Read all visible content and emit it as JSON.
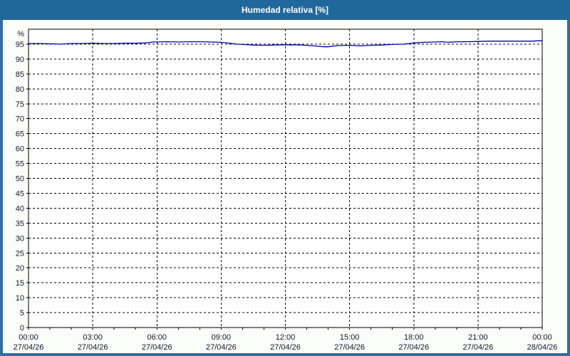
{
  "window": {
    "title": "Humedad relativa [%]"
  },
  "colors": {
    "titlebar_bg": "#20689c",
    "titlebar_text": "#ffffff",
    "window_border": "#2e6da6",
    "content_bg": "#fbfdf9",
    "plot_bg": "#ffffff",
    "plot_border": "#000000",
    "grid": "#000000",
    "tick_text": "#14142b",
    "series_line": "#0000a8"
  },
  "chart_data": {
    "type": "line",
    "title": "Humedad relativa [%]",
    "unit_label": "%",
    "ylim": [
      0,
      100
    ],
    "xlim_hours": [
      0,
      24
    ],
    "grid": "dashed",
    "legend": "none",
    "y_ticks": [
      95,
      90,
      85,
      80,
      75,
      70,
      65,
      60,
      55,
      50,
      45,
      40,
      35,
      30,
      25,
      20,
      15,
      10,
      5,
      0
    ],
    "x_ticks": [
      {
        "hour": 0,
        "time": "00:00",
        "date": "27/04/26"
      },
      {
        "hour": 3,
        "time": "03:00",
        "date": "27/04/26"
      },
      {
        "hour": 6,
        "time": "06:00",
        "date": "27/04/26"
      },
      {
        "hour": 9,
        "time": "09:00",
        "date": "27/04/26"
      },
      {
        "hour": 12,
        "time": "12:00",
        "date": "27/04/26"
      },
      {
        "hour": 15,
        "time": "15:00",
        "date": "27/04/26"
      },
      {
        "hour": 18,
        "time": "18:00",
        "date": "27/04/26"
      },
      {
        "hour": 21,
        "time": "21:00",
        "date": "27/04/26"
      },
      {
        "hour": 24,
        "time": "00:00",
        "date": "28/04/26"
      }
    ],
    "minor_x_tick_every_hours": 1,
    "series": [
      {
        "name": "Humedad relativa",
        "color": "#0000a8",
        "points": [
          [
            0,
            95.2
          ],
          [
            0.5,
            95.2
          ],
          [
            1,
            95.1
          ],
          [
            1.5,
            95.0
          ],
          [
            2,
            95.2
          ],
          [
            2.5,
            95.2
          ],
          [
            3,
            95.3
          ],
          [
            3.5,
            95.2
          ],
          [
            4,
            95.2
          ],
          [
            4.5,
            95.3
          ],
          [
            5,
            95.3
          ],
          [
            5.5,
            95.4
          ],
          [
            5.8,
            95.7
          ],
          [
            6,
            95.7
          ],
          [
            6.5,
            95.8
          ],
          [
            7,
            95.7
          ],
          [
            7.5,
            95.8
          ],
          [
            8,
            95.8
          ],
          [
            8.5,
            95.7
          ],
          [
            9,
            95.6
          ],
          [
            9.5,
            95.2
          ],
          [
            9.75,
            95.0
          ],
          [
            10,
            94.9
          ],
          [
            10.5,
            94.7
          ],
          [
            11,
            94.6
          ],
          [
            11.5,
            94.7
          ],
          [
            12,
            94.8
          ],
          [
            12.25,
            94.7
          ],
          [
            12.5,
            94.8
          ],
          [
            13,
            94.6
          ],
          [
            13.5,
            94.3
          ],
          [
            13.8,
            94.1
          ],
          [
            14,
            94.1
          ],
          [
            14.3,
            94.4
          ],
          [
            14.5,
            94.5
          ],
          [
            15,
            94.6
          ],
          [
            15.5,
            94.4
          ],
          [
            16,
            94.6
          ],
          [
            16.5,
            94.7
          ],
          [
            17,
            94.9
          ],
          [
            17.5,
            95.0
          ],
          [
            17.8,
            95.2
          ],
          [
            18,
            95.4
          ],
          [
            18.5,
            95.6
          ],
          [
            19,
            95.7
          ],
          [
            19.3,
            95.8
          ],
          [
            19.6,
            95.6
          ],
          [
            20,
            95.8
          ],
          [
            20.5,
            95.8
          ],
          [
            21,
            95.9
          ],
          [
            21.5,
            96.0
          ],
          [
            22,
            96.0
          ],
          [
            22.5,
            96.0
          ],
          [
            23,
            96.0
          ],
          [
            23.5,
            96.0
          ],
          [
            23.8,
            96.1
          ],
          [
            24,
            96.1
          ]
        ]
      }
    ]
  }
}
